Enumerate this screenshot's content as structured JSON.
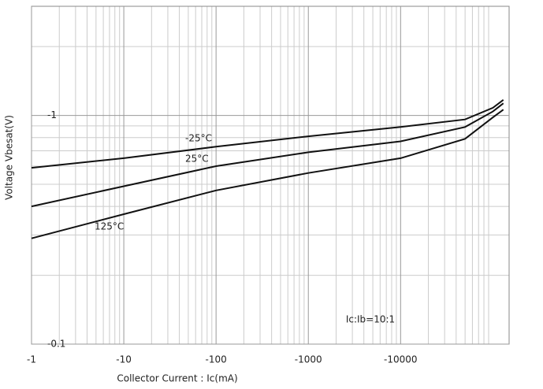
{
  "chart_data": {
    "type": "line",
    "x_label": "Collector Current : Ic(mA)",
    "y_label": "Voltage Vbesat(V)",
    "annotation": "Ic:Ib=10:1",
    "x": [
      -1,
      -10,
      -100,
      -1000,
      -10000,
      -50000,
      -100000,
      -130000
    ],
    "series": [
      {
        "name": "-25°C",
        "color": "#111111",
        "values": [
          -0.59,
          -0.65,
          -0.73,
          -0.81,
          -0.89,
          -0.96,
          -1.08,
          -1.17
        ]
      },
      {
        "name": "25°C",
        "color": "#111111",
        "values": [
          -0.4,
          -0.49,
          -0.6,
          -0.69,
          -0.77,
          -0.89,
          -1.04,
          -1.13
        ]
      },
      {
        "name": "125°C",
        "color": "#111111",
        "values": [
          -0.29,
          -0.37,
          -0.47,
          -0.56,
          -0.65,
          -0.79,
          -0.98,
          -1.06
        ]
      }
    ],
    "xlim": [
      -1,
      -150000
    ],
    "xticks": [
      -1,
      -10,
      -100,
      -1000,
      -10000
    ],
    "ylim": [
      -0.1,
      -3
    ],
    "yticks": [
      -0.1,
      -1
    ],
    "log_x": true,
    "log_y": true,
    "grid": true
  }
}
